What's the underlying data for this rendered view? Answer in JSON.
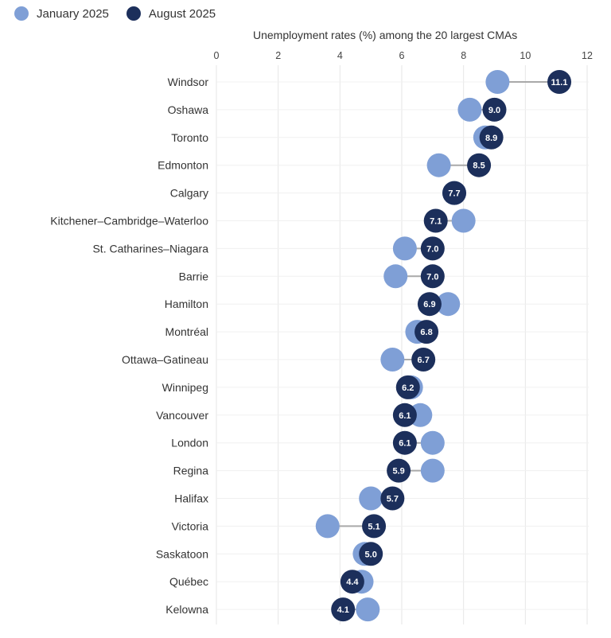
{
  "legend": [
    {
      "label": "January 2025",
      "color": "#7f9fd6"
    },
    {
      "label": "August 2025",
      "color": "#1c2f5b"
    }
  ],
  "chart_data": {
    "type": "dumbbell",
    "title": "Unemployment rates (%) among the 20 largest CMAs",
    "xlim": [
      0,
      12
    ],
    "xticks": [
      0,
      2,
      4,
      6,
      8,
      10,
      12
    ],
    "grid": true,
    "legend_position": "top-left",
    "categories": [
      "Windsor",
      "Oshawa",
      "Toronto",
      "Edmonton",
      "Calgary",
      "Kitchener–Cambridge–Waterloo",
      "St. Catharines–Niagara",
      "Barrie",
      "Hamilton",
      "Montréal",
      "Ottawa–Gatineau",
      "Winnipeg",
      "Vancouver",
      "London",
      "Regina",
      "Halifax",
      "Victoria",
      "Saskatoon",
      "Québec",
      "Kelowna"
    ],
    "series": [
      {
        "name": "January 2025",
        "color": "#7f9fd6",
        "values": [
          9.1,
          8.2,
          8.7,
          7.2,
          7.7,
          8.0,
          6.1,
          5.8,
          7.5,
          6.5,
          5.7,
          6.3,
          6.6,
          7.0,
          7.0,
          5.0,
          3.6,
          4.8,
          4.7,
          4.9
        ]
      },
      {
        "name": "August 2025",
        "color": "#1c2f5b",
        "values": [
          11.1,
          9.0,
          8.9,
          8.5,
          7.7,
          7.1,
          7.0,
          7.0,
          6.9,
          6.8,
          6.7,
          6.2,
          6.1,
          6.1,
          5.9,
          5.7,
          5.1,
          5.0,
          4.4,
          4.1
        ],
        "labels": [
          "11.1",
          "9.0",
          "8.9",
          "8.5",
          "7.7",
          "7.1",
          "7.0",
          "7.0",
          "6.9",
          "6.8",
          "6.7",
          "6.2",
          "6.1",
          "6.1",
          "5.9",
          "5.7",
          "5.1",
          "5.0",
          "4.4",
          "4.1"
        ]
      }
    ]
  }
}
